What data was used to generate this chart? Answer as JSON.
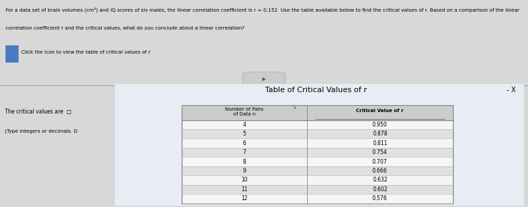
{
  "line1": "For a data set of brain volumes (cm³) and IQ scores of six males, the linear correlation coefficient is r = 0.152  Use the table available below to find the critical values of r. Based on a comparison of the linear",
  "line2": "correlation coefficient r and the critical values, what do you conclude about a linear correlation?",
  "click_text": "Click the icon to view the table of critical values of r",
  "critical_label": "The critical values are",
  "type_note": "(Type integers or decimals. D",
  "table_title": "Table of Critical Values of r",
  "col1_header_line1": "Number of Pairs",
  "col1_header_line2": "of Data n",
  "col2_header": "Critical Value of r",
  "n_values": [
    4,
    5,
    6,
    7,
    8,
    9,
    10,
    11,
    12
  ],
  "r_values": [
    "0.950",
    "0.878",
    "0.811",
    "0.754",
    "0.707",
    "0.666",
    "0.632",
    "0.602",
    "0.576"
  ],
  "page_bg": "#d8d8d8",
  "top_bg": "#e8e8e8",
  "dialog_bg": "#dce4ee",
  "dialog_inner_bg": "#e8edf5",
  "table_bg": "#f5f5f5",
  "table_row_alt": "#e8e8e8",
  "header_row_bg": "#cccccc",
  "text_color": "#000000",
  "minus_x": "- X",
  "separator_color": "#999999",
  "border_color": "#4060a0",
  "table_border_color": "#808080"
}
